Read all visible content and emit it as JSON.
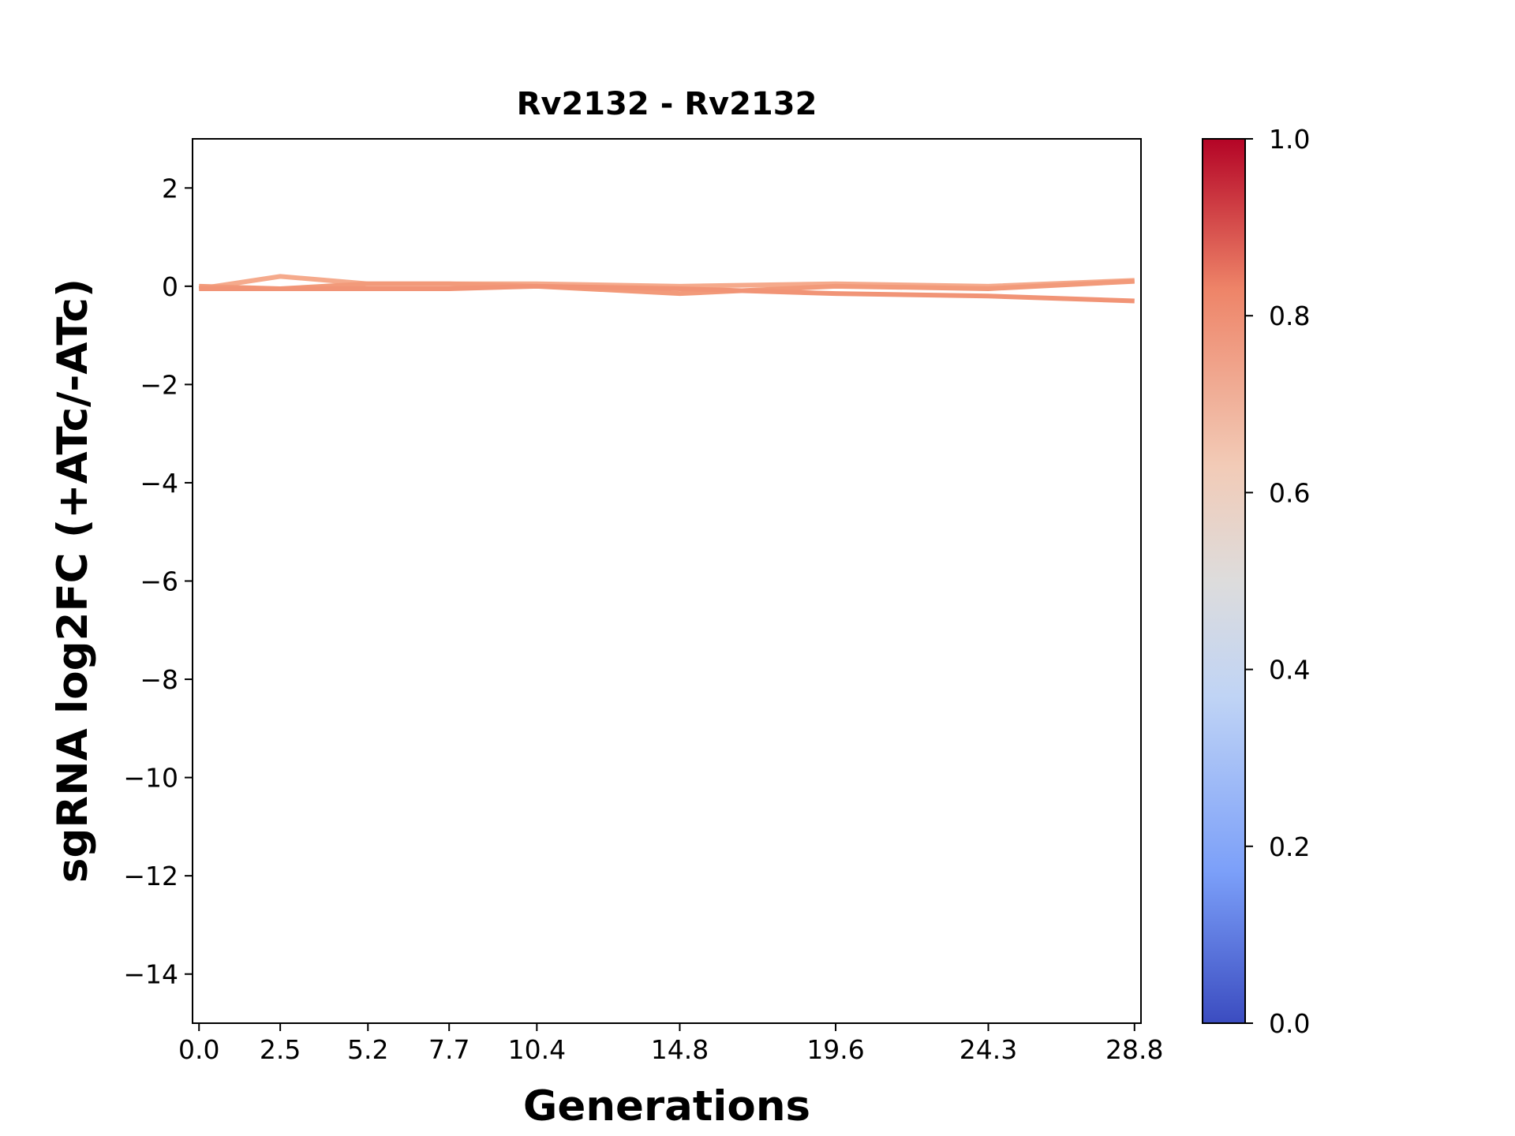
{
  "chart_data": {
    "type": "line",
    "title": "Rv2132 - Rv2132",
    "xlabel": "Generations",
    "ylabel": "sgRNA log2FC (+ATc/-ATc)",
    "x": [
      0.0,
      2.5,
      5.2,
      7.7,
      10.4,
      14.8,
      19.6,
      24.3,
      28.8
    ],
    "xtick_labels": [
      "0.0",
      "2.5",
      "5.2",
      "7.7",
      "10.4",
      "14.8",
      "19.6",
      "24.3",
      "28.8"
    ],
    "yticks": [
      2,
      0,
      -2,
      -4,
      -6,
      -8,
      -10,
      -12,
      -14
    ],
    "ytick_labels": [
      "2",
      "0",
      "−2",
      "−4",
      "−6",
      "−8",
      "−10",
      "−12",
      "−14"
    ],
    "xlim": [
      -0.2,
      29.0
    ],
    "ylim": [
      -15,
      3
    ],
    "grid": false,
    "series": [
      {
        "color": "#f5aa8c",
        "values": [
          -0.05,
          0.2,
          0.05,
          0.05,
          0.05,
          0.0,
          0.05,
          0.0,
          0.12
        ]
      },
      {
        "color": "#f29a7a",
        "values": [
          0.0,
          -0.05,
          0.05,
          0.05,
          0.0,
          -0.15,
          0.0,
          -0.05,
          0.1
        ]
      },
      {
        "color": "#f19476",
        "values": [
          -0.05,
          -0.05,
          -0.05,
          -0.05,
          0.0,
          -0.05,
          -0.15,
          -0.2,
          -0.3
        ]
      }
    ],
    "colorbar": {
      "colormap": "coolwarm",
      "range": [
        0.0,
        1.0
      ],
      "tick_labels": [
        "0.0",
        "0.2",
        "0.4",
        "0.6",
        "0.8",
        "1.0"
      ],
      "colors": [
        "#3b4cc0",
        "#7b9ff9",
        "#c0d4f5",
        "#dddcdc",
        "#f2cbb7",
        "#ee8468",
        "#b40426"
      ]
    }
  }
}
